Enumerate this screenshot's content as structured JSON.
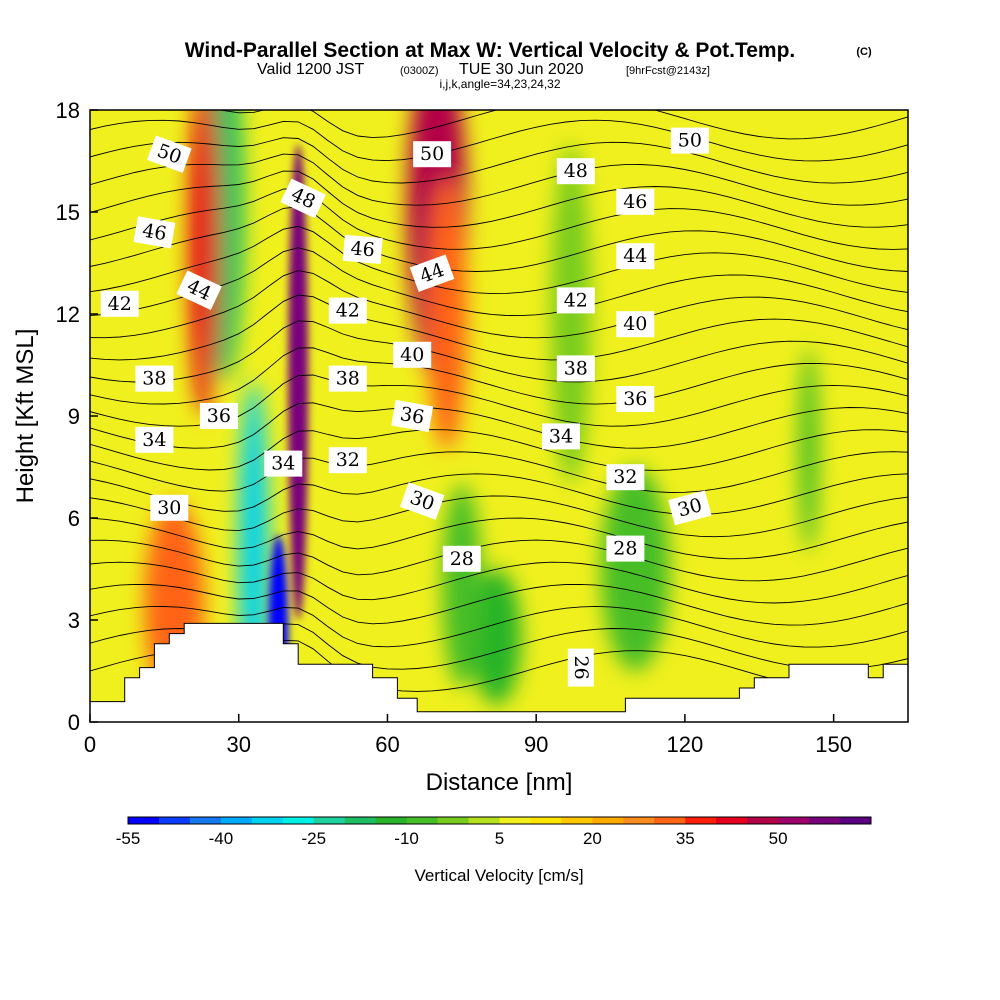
{
  "title": {
    "main": "Wind-Parallel Section at Max W: Vertical Velocity & Pot.Temp.",
    "copyright": "(C)",
    "valid_prefix": "Valid 1200 JST",
    "valid_z": "(0300Z)",
    "valid_date": "TUE 30 Jun 2020",
    "forecast": "[9hrFcst@2143z]",
    "indices": "i,j,k,angle=34,23,24,32"
  },
  "chart_data": {
    "type": "heatmap",
    "xlabel": "Distance [nm]",
    "ylabel": "Height [Kft MSL]",
    "xlim": [
      0,
      165
    ],
    "ylim": [
      0,
      18
    ],
    "x_ticks": [
      0,
      30,
      60,
      90,
      120,
      150
    ],
    "y_ticks": [
      0,
      3,
      6,
      9,
      12,
      15,
      18
    ],
    "x_tick_labels": [
      "0",
      "30",
      "60",
      "90",
      "120",
      "150"
    ],
    "y_tick_labels": [
      "0",
      "3",
      "6",
      "9",
      "12",
      "15",
      "18"
    ],
    "colorbar": {
      "label": "Vertical Velocity [cm/s]",
      "min": -55,
      "max": 60,
      "step": 5,
      "tick_values": [
        -55,
        -40,
        -25,
        -10,
        5,
        20,
        35,
        50
      ],
      "tick_labels": [
        "-55",
        "-40",
        "-25",
        "-10",
        "5",
        "20",
        "35",
        "50"
      ],
      "colors": [
        "#0000ff",
        "#0a3cff",
        "#1478f0",
        "#00aaff",
        "#00d2f0",
        "#00f0e6",
        "#1ed2a0",
        "#1ebe64",
        "#28b428",
        "#46be28",
        "#78cc1e",
        "#b4e01e",
        "#f0f01e",
        "#ffe600",
        "#ffc800",
        "#ffaa00",
        "#ff8c1e",
        "#ff6414",
        "#ff1e0a",
        "#e6001e",
        "#b40046",
        "#a0006e",
        "#78007d",
        "#5a0082"
      ]
    },
    "vertical_velocity_features": [
      {
        "x": 17,
        "y": 3.5,
        "value": 30
      },
      {
        "x": 27,
        "y": 15,
        "value": -20
      },
      {
        "x": 23,
        "y": 14,
        "value": 40
      },
      {
        "x": 33,
        "y": 5,
        "value": -35
      },
      {
        "x": 38,
        "y": 2.5,
        "value": -55
      },
      {
        "x": 42,
        "y": 10,
        "value": 55
      },
      {
        "x": 70,
        "y": 15,
        "value": 45
      },
      {
        "x": 72,
        "y": 12,
        "value": 30
      },
      {
        "x": 82,
        "y": 2.5,
        "value": -15
      },
      {
        "x": 75,
        "y": 4,
        "value": -10
      },
      {
        "x": 97,
        "y": 12,
        "value": -5
      },
      {
        "x": 145,
        "y": 8,
        "value": -10
      },
      {
        "x": 110,
        "y": 4.5,
        "value": -10
      }
    ],
    "terrain": [
      [
        0,
        0.6
      ],
      [
        7,
        0.6
      ],
      [
        7,
        1.3
      ],
      [
        10,
        1.3
      ],
      [
        10,
        1.6
      ],
      [
        13,
        1.6
      ],
      [
        13,
        2.3
      ],
      [
        16,
        2.3
      ],
      [
        16,
        2.6
      ],
      [
        19,
        2.6
      ],
      [
        19,
        2.9
      ],
      [
        39,
        2.9
      ],
      [
        39,
        2.3
      ],
      [
        42,
        2.3
      ],
      [
        42,
        1.7
      ],
      [
        57,
        1.7
      ],
      [
        57,
        1.3
      ],
      [
        62,
        1.3
      ],
      [
        62,
        0.7
      ],
      [
        66,
        0.7
      ],
      [
        66,
        0.3
      ],
      [
        108,
        0.3
      ],
      [
        108,
        0.7
      ],
      [
        131,
        0.7
      ],
      [
        131,
        1.0
      ],
      [
        134,
        1.0
      ],
      [
        134,
        1.3
      ],
      [
        141,
        1.3
      ],
      [
        141,
        1.7
      ],
      [
        157,
        1.7
      ],
      [
        157,
        1.3
      ],
      [
        160,
        1.3
      ],
      [
        160,
        1.7
      ],
      [
        165,
        1.7
      ]
    ],
    "potential_temperature": {
      "contour_interval": 1,
      "labels": [
        {
          "text": "50",
          "x": 16,
          "y": 16.7,
          "angle": 20
        },
        {
          "text": "46",
          "x": 13,
          "y": 14.4,
          "angle": 10
        },
        {
          "text": "42",
          "x": 6,
          "y": 12.3,
          "angle": 0
        },
        {
          "text": "44",
          "x": 22,
          "y": 12.7,
          "angle": 25
        },
        {
          "text": "38",
          "x": 13,
          "y": 10.1,
          "angle": 0
        },
        {
          "text": "36",
          "x": 26,
          "y": 9.0,
          "angle": 0
        },
        {
          "text": "34",
          "x": 13,
          "y": 8.3,
          "angle": 0
        },
        {
          "text": "30",
          "x": 16,
          "y": 6.3,
          "angle": 0
        },
        {
          "text": "48",
          "x": 43,
          "y": 15.4,
          "angle": 25
        },
        {
          "text": "46",
          "x": 55,
          "y": 13.9,
          "angle": 5
        },
        {
          "text": "42",
          "x": 52,
          "y": 12.1,
          "angle": 0
        },
        {
          "text": "38",
          "x": 52,
          "y": 10.1,
          "angle": 0
        },
        {
          "text": "34",
          "x": 39,
          "y": 7.6,
          "angle": 0
        },
        {
          "text": "32",
          "x": 52,
          "y": 7.7,
          "angle": 0
        },
        {
          "text": "40",
          "x": 65,
          "y": 10.8,
          "angle": 0
        },
        {
          "text": "36",
          "x": 65,
          "y": 9.0,
          "angle": 10
        },
        {
          "text": "30",
          "x": 67,
          "y": 6.5,
          "angle": 20
        },
        {
          "text": "50",
          "x": 69,
          "y": 16.7,
          "angle": 0
        },
        {
          "text": "44",
          "x": 69,
          "y": 13.2,
          "angle": -20
        },
        {
          "text": "28",
          "x": 75,
          "y": 4.8,
          "angle": 0
        },
        {
          "text": "48",
          "x": 98,
          "y": 16.2,
          "angle": 0
        },
        {
          "text": "42",
          "x": 98,
          "y": 12.4,
          "angle": 0
        },
        {
          "text": "38",
          "x": 98,
          "y": 10.4,
          "angle": 0
        },
        {
          "text": "34",
          "x": 95,
          "y": 8.4,
          "angle": 0
        },
        {
          "text": "50",
          "x": 121,
          "y": 17.1,
          "angle": 0
        },
        {
          "text": "46",
          "x": 110,
          "y": 15.3,
          "angle": 0
        },
        {
          "text": "44",
          "x": 110,
          "y": 13.7,
          "angle": 0
        },
        {
          "text": "40",
          "x": 110,
          "y": 11.7,
          "angle": 0
        },
        {
          "text": "36",
          "x": 110,
          "y": 9.5,
          "angle": 0
        },
        {
          "text": "32",
          "x": 108,
          "y": 7.2,
          "angle": 0
        },
        {
          "text": "30",
          "x": 121,
          "y": 6.3,
          "angle": -15
        },
        {
          "text": "28",
          "x": 108,
          "y": 5.1,
          "angle": 0
        },
        {
          "text": "26",
          "x": 99,
          "y": 1.6,
          "angle": 90
        }
      ]
    }
  }
}
